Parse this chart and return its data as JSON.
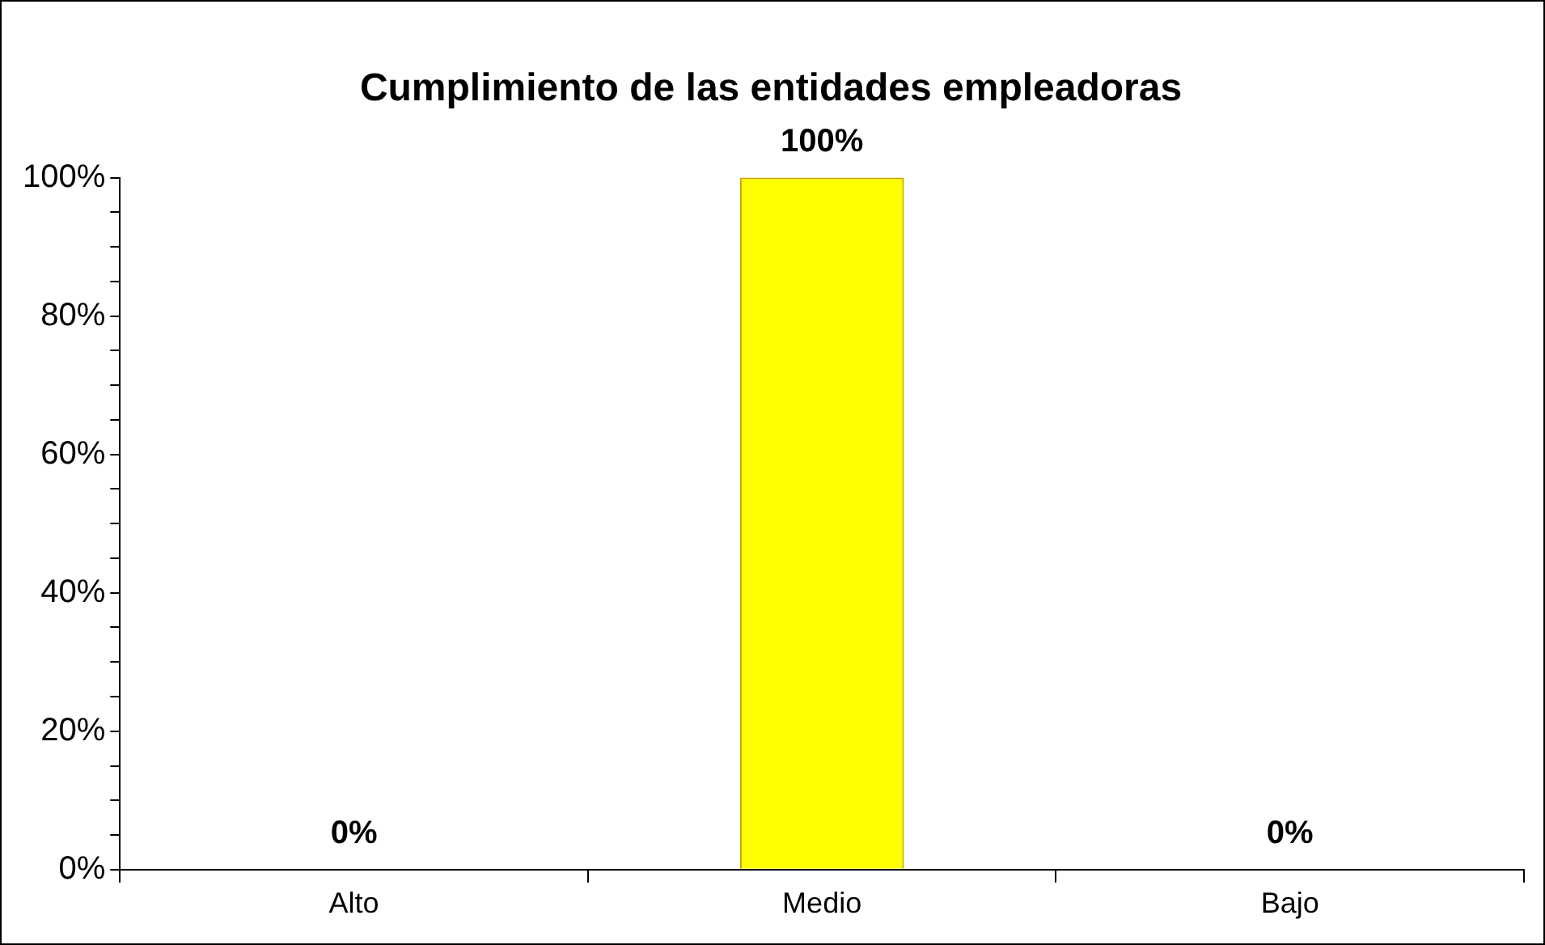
{
  "chart_data": {
    "type": "bar",
    "title": "Cumplimiento de las entidades empleadoras",
    "categories": [
      "Alto",
      "Medio",
      "Bajo"
    ],
    "values": [
      0,
      100,
      0
    ],
    "value_labels": [
      "0%",
      "100%",
      "0%"
    ],
    "color": "#ffff00",
    "ylim": [
      0,
      100
    ],
    "yticks": [
      {
        "value": 0,
        "label": "0%"
      },
      {
        "value": 5,
        "label": null
      },
      {
        "value": 10,
        "label": null
      },
      {
        "value": 15,
        "label": null
      },
      {
        "value": 20,
        "label": "20%"
      },
      {
        "value": 25,
        "label": null
      },
      {
        "value": 30,
        "label": null
      },
      {
        "value": 35,
        "label": null
      },
      {
        "value": 40,
        "label": "40%"
      },
      {
        "value": 45,
        "label": null
      },
      {
        "value": 50,
        "label": null
      },
      {
        "value": 55,
        "label": null
      },
      {
        "value": 60,
        "label": "60%"
      },
      {
        "value": 65,
        "label": null
      },
      {
        "value": 70,
        "label": null
      },
      {
        "value": 75,
        "label": null
      },
      {
        "value": 80,
        "label": "80%"
      },
      {
        "value": 85,
        "label": null
      },
      {
        "value": 90,
        "label": null
      },
      {
        "value": 95,
        "label": null
      },
      {
        "value": 100,
        "label": "100%"
      }
    ],
    "grid": false,
    "legend": false
  }
}
